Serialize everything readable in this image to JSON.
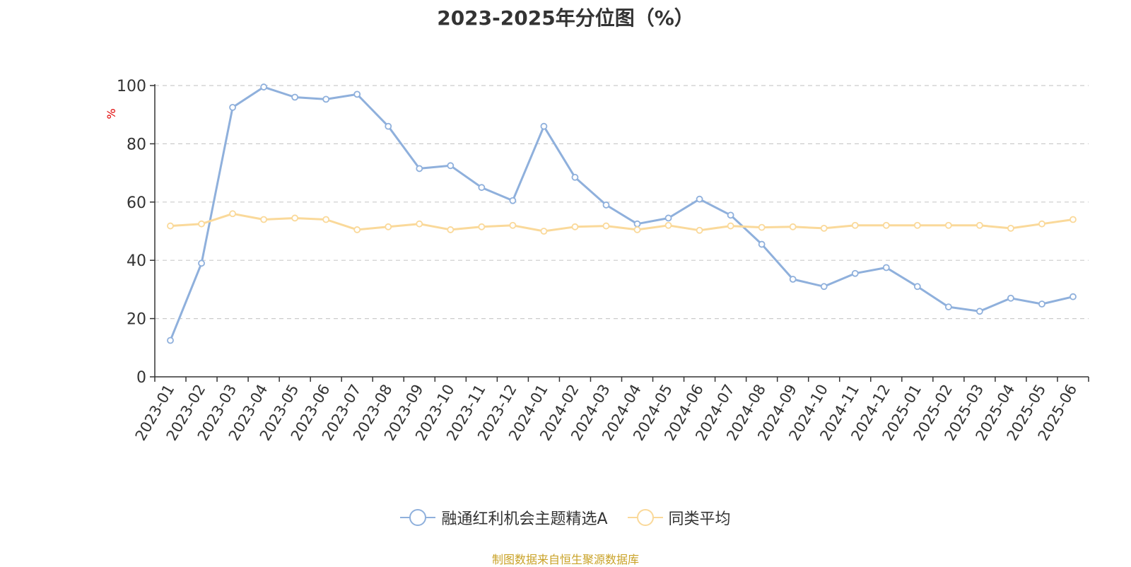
{
  "chart_data": {
    "type": "line",
    "title": "2023-2025年分位图（%）",
    "ylabel": "%",
    "xlabel": "",
    "ylim": [
      0,
      100
    ],
    "yticks": [
      0,
      20,
      40,
      60,
      80,
      100
    ],
    "grid": true,
    "legend_position": "bottom",
    "categories": [
      "2023-01",
      "2023-02",
      "2023-03",
      "2023-04",
      "2023-05",
      "2023-06",
      "2023-07",
      "2023-08",
      "2023-09",
      "2023-10",
      "2023-11",
      "2023-12",
      "2024-01",
      "2024-02",
      "2024-03",
      "2024-04",
      "2024-05",
      "2024-06",
      "2024-07",
      "2024-08",
      "2024-09",
      "2024-10",
      "2024-11",
      "2024-12",
      "2025-01",
      "2025-02",
      "2025-03",
      "2025-04",
      "2025-05",
      "2025-06"
    ],
    "series": [
      {
        "name": "融通红利机会主题精选A",
        "color": "#8fb0dc",
        "values": [
          12.5,
          39,
          92.5,
          99.5,
          96,
          95.3,
          97,
          86,
          71.5,
          72.5,
          65,
          60.5,
          86,
          68.5,
          59,
          52.5,
          54.5,
          61,
          55.5,
          45.5,
          33.5,
          31,
          35.5,
          37.5,
          31,
          24,
          22.5,
          27,
          25,
          27.5
        ]
      },
      {
        "name": "同类平均",
        "color": "#fad99a",
        "values": [
          51.8,
          52.5,
          56,
          54,
          54.5,
          54,
          50.5,
          51.5,
          52.5,
          50.5,
          51.5,
          52,
          50,
          51.5,
          51.8,
          50.5,
          52,
          50.3,
          51.8,
          51.3,
          51.5,
          51,
          52,
          52,
          52,
          52,
          52,
          51,
          52.5,
          54
        ]
      }
    ]
  },
  "source_note": "制图数据来自恒生聚源数据库"
}
